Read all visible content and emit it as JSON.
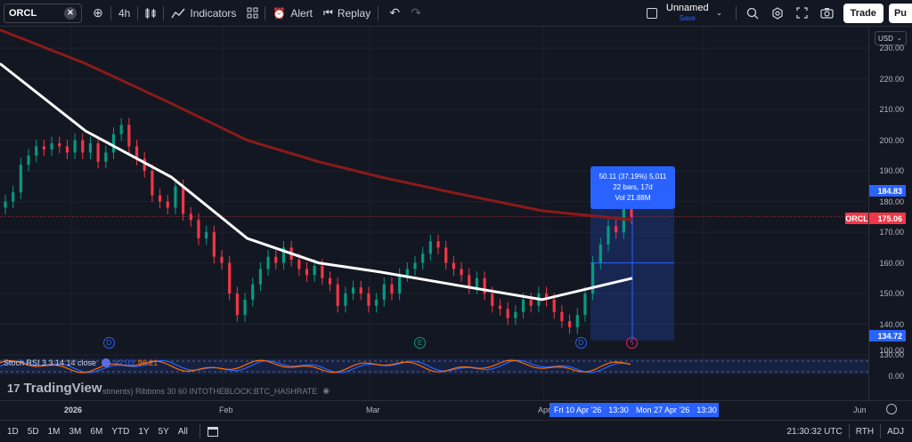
{
  "toolbar": {
    "symbol": "ORCL",
    "interval": "4h",
    "indicators_label": "Indicators",
    "alert_label": "Alert",
    "replay_label": "Replay",
    "layout_name": "Unnamed",
    "layout_status": "Save",
    "trade_label": "Trade",
    "publish_label": "Pu"
  },
  "price_axis": {
    "currency": "USD",
    "ticks": [
      "230.00",
      "220.00",
      "210.00",
      "200.00",
      "190.00",
      "180.00",
      "170.00",
      "160.00",
      "150.00",
      "140.00",
      "130.00"
    ],
    "high_tag": "184.83",
    "symbol_tag": "ORCL",
    "last_tag": "175.06",
    "low_tag": "134.72",
    "osc_ticks": [
      "100.00",
      "0.00"
    ],
    "colors": {
      "last": "#f23645",
      "measure": "#2962ff"
    }
  },
  "measure": {
    "line1": "50.11 (37.19%) 5,011",
    "line2": "22 bars, 17d",
    "line3": "Vol 21.88M"
  },
  "stoch": {
    "title": "Stoch RSI 3 3 14 14 close",
    "k_value": "92.03",
    "d_value": "96.21",
    "k_color": "#2962ff",
    "d_color": "#ff6d00"
  },
  "second_indicator": {
    "title": "stments) Ribbons 30 60 INTOTHEBLOCK:BTC_HASHRATE"
  },
  "brand": {
    "logo": "TradingView"
  },
  "markers": {
    "dividend": "D",
    "earnings": "E",
    "lightning_icon": "lightning-icon"
  },
  "time_axis": {
    "labels": [
      "2026",
      "Feb",
      "Mar",
      "Apr",
      "Jun"
    ],
    "from_tag": "Fri 10 Apr '26",
    "from_time": "13:30",
    "to_tag": "Mon 27 Apr '26",
    "to_time": "13:30"
  },
  "bottom_bar": {
    "ranges": [
      "1D",
      "5D",
      "1M",
      "3M",
      "6M",
      "YTD",
      "1Y",
      "5Y",
      "All"
    ],
    "clock": "21:30:32 UTC",
    "session": "RTH",
    "adj": "ADJ"
  },
  "chart_data": {
    "type": "candlestick",
    "symbol": "ORCL",
    "interval": "4h",
    "y_range": [
      130,
      235
    ],
    "ma_fast": [
      [
        "2025-12-15",
        225
      ],
      [
        "2026-01-02",
        203
      ],
      [
        "2026-01-20",
        188
      ],
      [
        "2026-02-05",
        168
      ],
      [
        "2026-02-20",
        160
      ],
      [
        "2026-03-05",
        157
      ],
      [
        "2026-03-20",
        153
      ],
      [
        "2026-04-08",
        148
      ],
      [
        "2026-04-27",
        155
      ]
    ],
    "ma_slow": [
      [
        "2025-12-15",
        236
      ],
      [
        "2026-01-02",
        225
      ],
      [
        "2026-01-20",
        212
      ],
      [
        "2026-02-05",
        200
      ],
      [
        "2026-02-20",
        193
      ],
      [
        "2026-03-05",
        188
      ],
      [
        "2026-03-20",
        183
      ],
      [
        "2026-04-08",
        177
      ],
      [
        "2026-04-27",
        174
      ]
    ],
    "candle_closes": [
      180,
      183,
      192,
      195,
      198,
      197,
      199,
      198,
      196,
      200,
      196,
      199,
      193,
      196,
      202,
      205,
      198,
      194,
      190,
      182,
      180,
      178,
      185,
      176,
      174,
      168,
      170,
      162,
      160,
      150,
      143,
      148,
      153,
      158,
      162,
      160,
      165,
      161,
      158,
      156,
      159,
      155,
      153,
      146,
      150,
      152,
      150,
      146,
      148,
      153,
      150,
      156,
      158,
      160,
      163,
      167,
      165,
      160,
      158,
      156,
      152,
      155,
      150,
      146,
      145,
      142,
      144,
      148,
      146,
      150,
      148,
      144,
      141,
      139,
      143,
      150,
      160,
      166,
      172,
      170,
      182,
      175
    ],
    "measure": {
      "from": 134.72,
      "to": 184.83,
      "change": 50.11,
      "change_pct": 37.19
    },
    "last_price": 175.06
  }
}
